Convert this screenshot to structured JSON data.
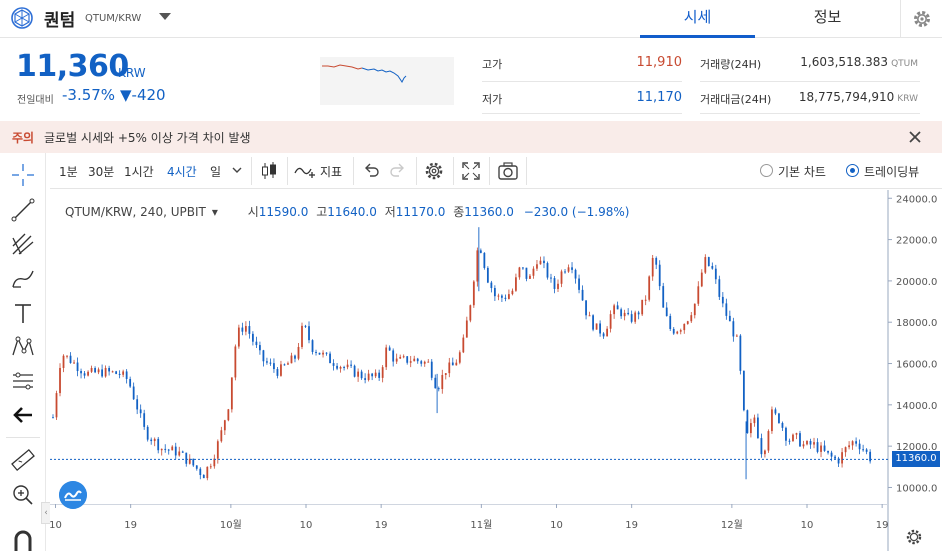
{
  "header": {
    "coin_name": "퀀텀",
    "coin_pair": "QTUM/KRW",
    "tabs": [
      {
        "label": "시세",
        "active": true
      },
      {
        "label": "정보",
        "active": false
      }
    ]
  },
  "summary": {
    "price": "11,360",
    "unit": "KRW",
    "prev_day_label": "전일대비",
    "change_rate": "-3.57%",
    "change_amount": "▼-420",
    "high_label": "고가",
    "high_value": "11,910",
    "low_label": "저가",
    "low_value": "11,170",
    "volume_label": "거래량(24H)",
    "volume_value": "1,603,518.383",
    "volume_unit": "QTUM",
    "amount_label": "거래대금(24H)",
    "amount_value": "18,775,794,910",
    "amount_unit": "KRW"
  },
  "notice": {
    "tag": "주의",
    "text": "글로벌 시세와 +5% 이상 가격 차이 발생"
  },
  "toolbar": {
    "timeframes": [
      {
        "label": "1분",
        "active": false
      },
      {
        "label": "30분",
        "active": false
      },
      {
        "label": "1시간",
        "active": false
      },
      {
        "label": "4시간",
        "active": true
      },
      {
        "label": "일",
        "active": false
      }
    ],
    "indicator_label": "지표",
    "chart_modes": [
      {
        "label": "기본 차트",
        "selected": false
      },
      {
        "label": "트레이딩뷰",
        "selected": true
      }
    ]
  },
  "legend": {
    "symbol": "QTUM/KRW, 240, UPBIT",
    "open_key": "시",
    "open": "11590.0",
    "high_key": "고",
    "high": "11640.0",
    "low_key": "저",
    "low": "11170.0",
    "close_key": "종",
    "close": "11360.0",
    "change": "−230.0 (−1.98%)"
  },
  "colors": {
    "accent": "#1261c4",
    "up": "#c84a31",
    "down": "#1261c4",
    "notice_bg": "#f9ece9"
  },
  "chart_data": {
    "type": "candlestick",
    "title": "QTUM/KRW, 240, UPBIT",
    "ylim": [
      9200,
      24400
    ],
    "y_ticks": [
      10000,
      12000,
      14000,
      16000,
      18000,
      20000,
      22000,
      24000
    ],
    "y_tick_labels": [
      "10000.0",
      "12000.0",
      "14000.0",
      "16000.0",
      "18000.0",
      "20000.0",
      "22000.0",
      "24000.0"
    ],
    "x_tick_labels": [
      "10",
      "19",
      "10월",
      "10",
      "19",
      "11월",
      "10",
      "19",
      "12월",
      "10",
      "19"
    ],
    "x_tick_positions": [
      0.3,
      9.3,
      21.3,
      30.3,
      39.3,
      51.3,
      60.3,
      69.3,
      81.3,
      90.3,
      99.3
    ],
    "last_price": 11360.0,
    "last_price_label": "11360.0",
    "close_path": [
      [
        0,
        13400
      ],
      [
        1,
        16500
      ],
      [
        2,
        16200
      ],
      [
        4,
        15500
      ],
      [
        6,
        15600
      ],
      [
        8,
        15500
      ],
      [
        9,
        15200
      ],
      [
        10,
        14000
      ],
      [
        11,
        12700
      ],
      [
        13,
        11900
      ],
      [
        15,
        11700
      ],
      [
        17,
        11000
      ],
      [
        18,
        10600
      ],
      [
        19,
        11300
      ],
      [
        20,
        12400
      ],
      [
        21,
        14000
      ],
      [
        22,
        17400
      ],
      [
        23,
        17900
      ],
      [
        25,
        16200
      ],
      [
        27,
        15600
      ],
      [
        29,
        16300
      ],
      [
        30,
        17900
      ],
      [
        31,
        16800
      ],
      [
        33,
        16200
      ],
      [
        35,
        15800
      ],
      [
        37,
        15400
      ],
      [
        39,
        15300
      ],
      [
        40,
        16800
      ],
      [
        41,
        16100
      ],
      [
        43,
        16200
      ],
      [
        45,
        16000
      ],
      [
        46,
        14800
      ],
      [
        47,
        15700
      ],
      [
        48,
        15900
      ],
      [
        49,
        16700
      ],
      [
        50,
        19000
      ],
      [
        51,
        22000
      ],
      [
        52,
        20200
      ],
      [
        53,
        19200
      ],
      [
        54,
        19200
      ],
      [
        55,
        19500
      ],
      [
        56,
        20700
      ],
      [
        57,
        20000
      ],
      [
        58,
        21100
      ],
      [
        59,
        20500
      ],
      [
        60,
        19600
      ],
      [
        61,
        20500
      ],
      [
        62,
        21000
      ],
      [
        63,
        19700
      ],
      [
        64,
        18300
      ],
      [
        65,
        17700
      ],
      [
        66,
        17500
      ],
      [
        67,
        18600
      ],
      [
        68,
        18500
      ],
      [
        69,
        18100
      ],
      [
        70,
        18400
      ],
      [
        71,
        19200
      ],
      [
        72,
        21400
      ],
      [
        73,
        18700
      ],
      [
        74,
        17600
      ],
      [
        75,
        17700
      ],
      [
        76,
        18200
      ],
      [
        77,
        19000
      ],
      [
        78,
        21000
      ],
      [
        79,
        20500
      ],
      [
        80,
        19000
      ],
      [
        81,
        18000
      ],
      [
        82,
        17000
      ],
      [
        83,
        12300
      ],
      [
        84,
        13400
      ],
      [
        85,
        11500
      ],
      [
        86,
        13600
      ],
      [
        87,
        13300
      ],
      [
        88,
        12300
      ],
      [
        89,
        12400
      ],
      [
        90,
        12000
      ],
      [
        91,
        12100
      ],
      [
        92,
        11800
      ],
      [
        93,
        11500
      ],
      [
        94,
        11300
      ],
      [
        95,
        11900
      ],
      [
        96,
        12300
      ],
      [
        97,
        11900
      ],
      [
        98,
        11360
      ]
    ]
  }
}
